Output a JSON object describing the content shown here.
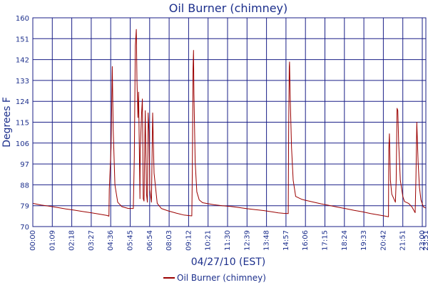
{
  "colors": {
    "background": "#ffffff",
    "grid": "#1a1f87",
    "frame": "#1a1f87",
    "text": "#1c2f8c",
    "series": "#9b0000"
  },
  "chart_data": {
    "type": "line",
    "title": "Oil Burner (chimney)",
    "xlabel": "04/27/10 (EST)",
    "ylabel": "Degrees F",
    "ylim": [
      70,
      160
    ],
    "y_ticks": [
      "70",
      "79",
      "88",
      "97",
      "106",
      "115",
      "124",
      "133",
      "142",
      "151",
      "160"
    ],
    "x_ticks": [
      "00:00",
      "01:09",
      "02:18",
      "03:27",
      "04:36",
      "05:45",
      "06:54",
      "08:03",
      "09:12",
      "10:21",
      "11:30",
      "12:39",
      "13:48",
      "14:57",
      "16:06",
      "17:15",
      "18:24",
      "19:33",
      "20:42",
      "21:51",
      "23:00",
      "23:51"
    ],
    "xlim_hours": [
      0,
      23.85
    ],
    "grid": true,
    "legend_position": "bottom-center",
    "series": [
      {
        "name": "Oil Burner (chimney)",
        "color": "#9b0000",
        "points": [
          [
            0.0,
            80.0
          ],
          [
            0.5,
            79.3
          ],
          [
            1.0,
            78.8
          ],
          [
            1.5,
            78.2
          ],
          [
            2.0,
            77.6
          ],
          [
            2.5,
            77.1
          ],
          [
            3.0,
            76.5
          ],
          [
            3.5,
            76.0
          ],
          [
            4.0,
            75.4
          ],
          [
            4.5,
            74.8
          ],
          [
            4.62,
            74.5
          ],
          [
            4.64,
            86.0
          ],
          [
            4.75,
            104.0
          ],
          [
            4.82,
            139.0
          ],
          [
            4.88,
            112.0
          ],
          [
            4.98,
            88.0
          ],
          [
            5.15,
            80.5
          ],
          [
            5.4,
            78.6
          ],
          [
            5.8,
            77.8
          ],
          [
            6.1,
            77.8
          ],
          [
            6.16,
            100.0
          ],
          [
            6.22,
            148.0
          ],
          [
            6.28,
            155.0
          ],
          [
            6.32,
            133.0
          ],
          [
            6.38,
            117.0
          ],
          [
            6.42,
            128.0
          ],
          [
            6.5,
            82.0
          ],
          [
            6.52,
            103.0
          ],
          [
            6.6,
            119.0
          ],
          [
            6.65,
            125.0
          ],
          [
            6.7,
            82.0
          ],
          [
            6.75,
            81.0
          ],
          [
            6.82,
            120.0
          ],
          [
            6.9,
            84.0
          ],
          [
            6.95,
            80.5
          ],
          [
            7.0,
            119.0
          ],
          [
            7.05,
            111.0
          ],
          [
            7.1,
            86.0
          ],
          [
            7.2,
            80.5
          ],
          [
            7.27,
            119.0
          ],
          [
            7.36,
            93.0
          ],
          [
            7.55,
            80.0
          ],
          [
            7.8,
            77.8
          ],
          [
            8.2,
            76.8
          ],
          [
            8.7,
            75.8
          ],
          [
            9.15,
            75.0
          ],
          [
            9.65,
            74.6
          ],
          [
            9.68,
            94.0
          ],
          [
            9.72,
            138.0
          ],
          [
            9.75,
            146.0
          ],
          [
            9.78,
            127.0
          ],
          [
            9.85,
            98.0
          ],
          [
            9.95,
            85.0
          ],
          [
            10.1,
            81.5
          ],
          [
            10.3,
            80.3
          ],
          [
            10.6,
            79.9
          ],
          [
            11.0,
            79.4
          ],
          [
            11.5,
            79.0
          ],
          [
            12.0,
            78.7
          ],
          [
            12.5,
            78.2
          ],
          [
            13.0,
            77.7
          ],
          [
            13.5,
            77.3
          ],
          [
            14.0,
            76.9
          ],
          [
            14.5,
            76.4
          ],
          [
            14.9,
            75.9
          ],
          [
            15.2,
            75.7
          ],
          [
            15.5,
            75.6
          ],
          [
            15.52,
            110.0
          ],
          [
            15.56,
            139.0
          ],
          [
            15.58,
            141.0
          ],
          [
            15.62,
            125.0
          ],
          [
            15.7,
            104.0
          ],
          [
            15.8,
            90.0
          ],
          [
            15.95,
            83.0
          ],
          [
            16.3,
            81.8
          ],
          [
            16.5,
            81.4
          ],
          [
            17.0,
            80.6
          ],
          [
            17.5,
            79.8
          ],
          [
            18.0,
            79.1
          ],
          [
            18.5,
            78.4
          ],
          [
            19.0,
            77.7
          ],
          [
            19.5,
            77.0
          ],
          [
            20.0,
            76.4
          ],
          [
            20.5,
            75.6
          ],
          [
            21.0,
            75.0
          ],
          [
            21.4,
            74.5
          ],
          [
            21.58,
            74.2
          ],
          [
            21.6,
            103.0
          ],
          [
            21.64,
            110.0
          ],
          [
            21.7,
            90.0
          ],
          [
            21.78,
            84.0
          ],
          [
            22.0,
            80.5
          ],
          [
            22.05,
            90.0
          ],
          [
            22.1,
            121.0
          ],
          [
            22.15,
            120.0
          ],
          [
            22.2,
            106.0
          ],
          [
            22.3,
            90.0
          ],
          [
            22.45,
            83.0
          ],
          [
            22.55,
            80.8
          ],
          [
            22.8,
            80.0
          ],
          [
            23.0,
            78.5
          ],
          [
            23.2,
            76.0
          ],
          [
            23.25,
            91.0
          ],
          [
            23.3,
            115.0
          ],
          [
            23.38,
            98.0
          ],
          [
            23.46,
            87.0
          ],
          [
            23.55,
            81.5
          ],
          [
            23.7,
            78.5
          ],
          [
            23.85,
            78.0
          ]
        ]
      }
    ]
  }
}
